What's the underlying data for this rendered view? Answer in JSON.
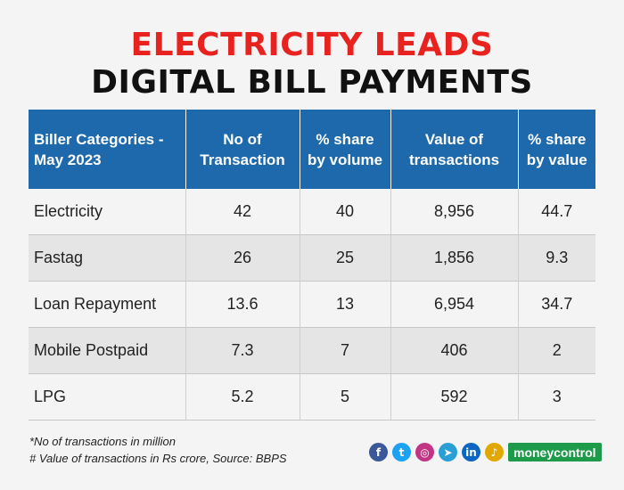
{
  "title_line1": "ELECTRICITY LEADS",
  "title_line2": "DIGITAL BILL PAYMENTS",
  "chart_data": {
    "type": "table",
    "columns": [
      "Biller Categories - May 2023",
      "No of Transaction",
      "% share by volume",
      "Value of transactions",
      "% share by value"
    ],
    "rows": [
      [
        "Electricity",
        "42",
        "40",
        "8,956",
        "44.7"
      ],
      [
        "Fastag",
        "26",
        "25",
        "1,856",
        "9.3"
      ],
      [
        "Loan Repayment",
        "13.6",
        "13",
        "6,954",
        "34.7"
      ],
      [
        "Mobile Postpaid",
        "7.3",
        "7",
        "406",
        "2"
      ],
      [
        "LPG",
        "5.2",
        "5",
        "592",
        "3"
      ]
    ]
  },
  "notes": {
    "line1": "*No of transactions in million",
    "line2": "# Value of transactions in Rs crore, Source: BBPS"
  },
  "social_icons": [
    {
      "name": "facebook-icon",
      "glyph": "f",
      "color": "#3b5998"
    },
    {
      "name": "twitter-icon",
      "glyph": "t",
      "color": "#1da1f2"
    },
    {
      "name": "instagram-icon",
      "glyph": "◎",
      "color": "#c13584"
    },
    {
      "name": "telegram-icon",
      "glyph": "➤",
      "color": "#2a9fd6"
    },
    {
      "name": "linkedin-icon",
      "glyph": "in",
      "color": "#0a66c2"
    },
    {
      "name": "podcast-icon",
      "glyph": "♪",
      "color": "#e0a800"
    }
  ],
  "brand": "moneycontrol"
}
